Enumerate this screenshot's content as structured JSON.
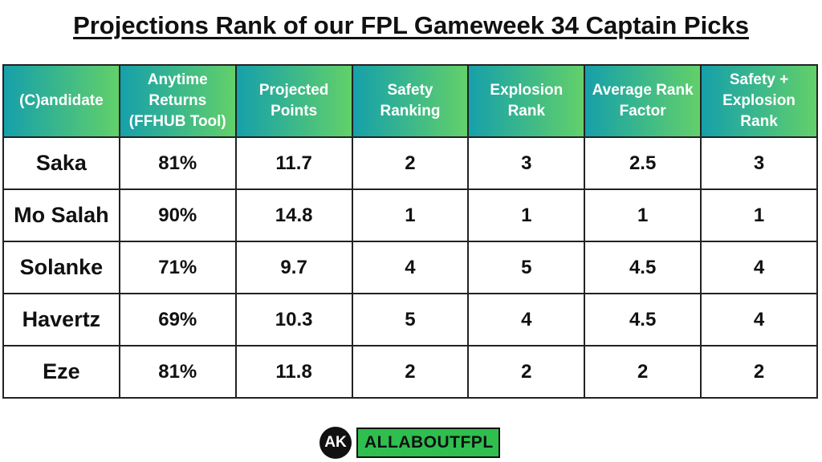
{
  "header": {
    "title": "Projections Rank of our FPL Gameweek 34 Captain Picks"
  },
  "table": {
    "columns": [
      "(C)andidate",
      "Anytime Returns (FFHUB Tool)",
      "Projected Points",
      "Safety Ranking",
      "Explosion Rank",
      "Average Rank Factor",
      "Safety + Explosion Rank"
    ],
    "rows": [
      [
        "Saka",
        "81%",
        "11.7",
        "2",
        "3",
        "2.5",
        "3"
      ],
      [
        "Mo Salah",
        "90%",
        "14.8",
        "1",
        "1",
        "1",
        "1"
      ],
      [
        "Solanke",
        "71%",
        "9.7",
        "4",
        "5",
        "4.5",
        "4"
      ],
      [
        "Havertz",
        "69%",
        "10.3",
        "5",
        "4",
        "4.5",
        "4"
      ],
      [
        "Eze",
        "81%",
        "11.8",
        "2",
        "2",
        "2",
        "2"
      ]
    ]
  },
  "footer": {
    "logo_mark": "AK",
    "brand": "ALLABOUTFPL"
  }
}
